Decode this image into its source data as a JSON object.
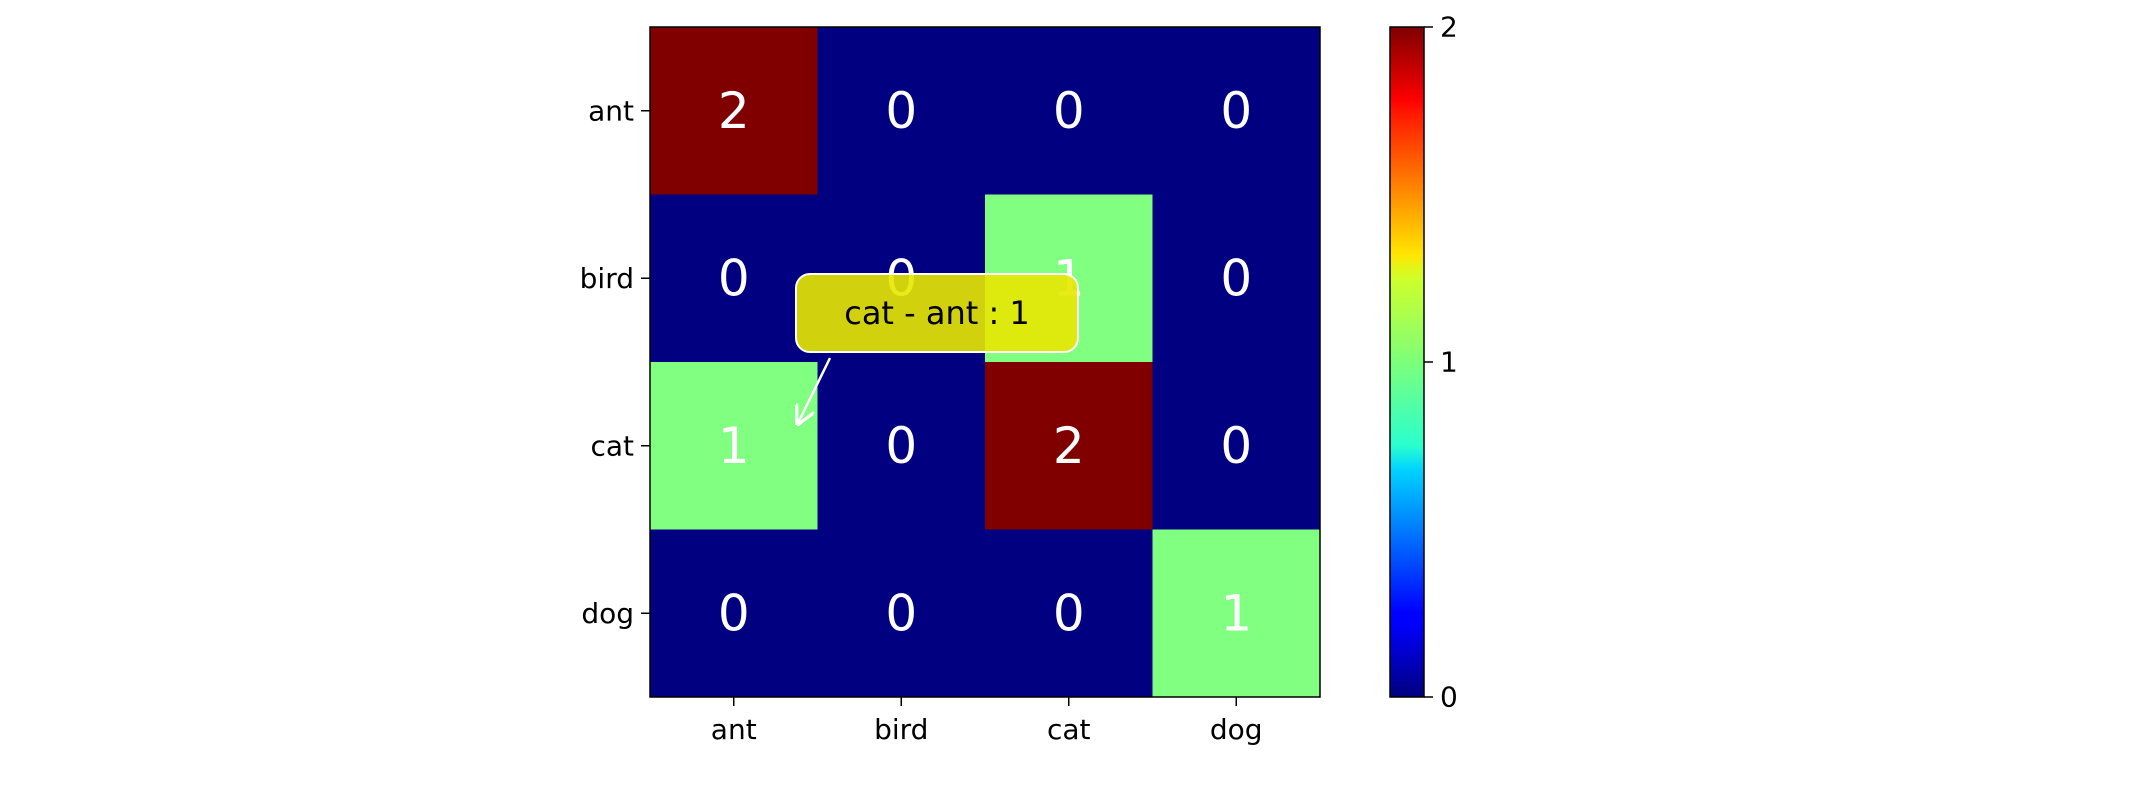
{
  "chart_data": {
    "type": "heatmap",
    "title": "",
    "xlabel": "",
    "ylabel": "",
    "x_categories": [
      "ant",
      "bird",
      "cat",
      "dog"
    ],
    "y_categories": [
      "ant",
      "bird",
      "cat",
      "dog"
    ],
    "matrix": [
      [
        2,
        0,
        0,
        0
      ],
      [
        0,
        0,
        1,
        0
      ],
      [
        1,
        0,
        2,
        0
      ],
      [
        0,
        0,
        0,
        1
      ]
    ],
    "colormap": "jet",
    "colorbar": {
      "range": [
        0,
        2
      ],
      "ticks": [
        "0",
        "1",
        "2"
      ]
    },
    "colors": {
      "low": "#00007f",
      "mid": "#7dff7a",
      "high": "#7f0000",
      "tooltip_bg": "#e8e800"
    },
    "annotation": {
      "text": "cat - ant : 1",
      "target_row": 2,
      "target_col": 0
    }
  }
}
